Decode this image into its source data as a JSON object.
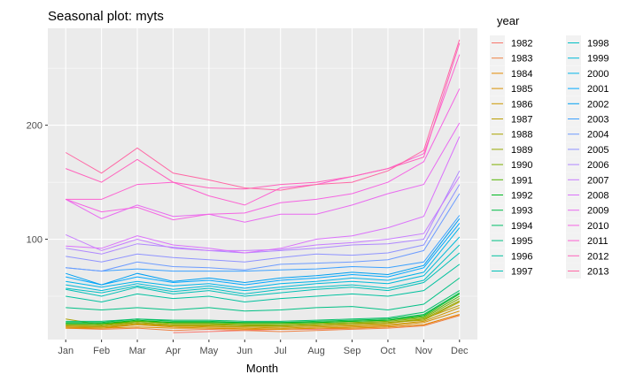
{
  "chart_data": {
    "type": "line",
    "title": "Seasonal plot: myts",
    "xlabel": "Month",
    "ylabel": "",
    "legend_title": "year",
    "legend_position": "right",
    "grid": true,
    "ylim": [
      12,
      285
    ],
    "y_ticks": [
      100,
      200
    ],
    "categories": [
      "Jan",
      "Feb",
      "Mar",
      "Apr",
      "May",
      "Jun",
      "Jul",
      "Aug",
      "Sep",
      "Oct",
      "Nov",
      "Dec"
    ],
    "series": [
      {
        "name": "1982",
        "color": "#F8766D",
        "values": [
          null,
          null,
          null,
          18,
          19,
          20,
          21,
          21,
          22,
          23,
          25,
          34
        ]
      },
      {
        "name": "1983",
        "color": "#EE8044",
        "values": [
          22,
          21,
          22,
          20,
          21,
          20,
          19,
          20,
          21,
          22,
          24,
          33
        ]
      },
      {
        "name": "1984",
        "color": "#E38900",
        "values": [
          22,
          22,
          23,
          22,
          22,
          21,
          21,
          22,
          22,
          23,
          25,
          34
        ]
      },
      {
        "name": "1985",
        "color": "#D89000",
        "values": [
          23,
          22,
          25,
          23,
          22,
          22,
          21,
          22,
          23,
          24,
          27,
          37
        ]
      },
      {
        "name": "1986",
        "color": "#CB9700",
        "values": [
          23,
          23,
          25,
          24,
          23,
          23,
          22,
          23,
          24,
          25,
          28,
          40
        ]
      },
      {
        "name": "1987",
        "color": "#BB9D00",
        "values": [
          24,
          23,
          26,
          24,
          24,
          23,
          23,
          24,
          25,
          26,
          30,
          42
        ]
      },
      {
        "name": "1988",
        "color": "#AAA300",
        "values": [
          30,
          25,
          27,
          25,
          25,
          25,
          24,
          25,
          26,
          27,
          29,
          45
        ]
      },
      {
        "name": "1989",
        "color": "#96A800",
        "values": [
          25,
          24,
          27,
          25,
          25,
          24,
          24,
          25,
          26,
          27,
          30,
          46
        ]
      },
      {
        "name": "1990",
        "color": "#7CAE00",
        "values": [
          25,
          25,
          28,
          26,
          26,
          25,
          25,
          26,
          27,
          28,
          31,
          48
        ]
      },
      {
        "name": "1991",
        "color": "#53B400",
        "values": [
          26,
          26,
          28,
          27,
          27,
          26,
          26,
          27,
          28,
          29,
          32,
          50
        ]
      },
      {
        "name": "1992",
        "color": "#00B81F",
        "values": [
          26,
          26,
          29,
          27,
          27,
          27,
          27,
          27,
          28,
          29,
          33,
          52
        ]
      },
      {
        "name": "1993",
        "color": "#00BB44",
        "values": [
          27,
          27,
          30,
          28,
          28,
          27,
          27,
          28,
          29,
          30,
          34,
          53
        ]
      },
      {
        "name": "1994",
        "color": "#00BE67",
        "values": [
          28,
          28,
          30,
          29,
          29,
          28,
          28,
          29,
          30,
          31,
          36,
          55
        ]
      },
      {
        "name": "1995",
        "color": "#00C085",
        "values": [
          40,
          38,
          40,
          38,
          40,
          37,
          38,
          40,
          41,
          38,
          43,
          66
        ]
      },
      {
        "name": "1996",
        "color": "#00C19F",
        "values": [
          50,
          45,
          52,
          48,
          50,
          45,
          48,
          50,
          52,
          50,
          55,
          78
        ]
      },
      {
        "name": "1997",
        "color": "#00C0B7",
        "values": [
          56,
          50,
          58,
          52,
          55,
          50,
          53,
          56,
          58,
          55,
          62,
          88
        ]
      },
      {
        "name": "1998",
        "color": "#00BFC4",
        "values": [
          57,
          53,
          59,
          54,
          57,
          52,
          56,
          58,
          60,
          57,
          64,
          95
        ]
      },
      {
        "name": "1999",
        "color": "#00BAD9",
        "values": [
          60,
          55,
          61,
          56,
          59,
          55,
          58,
          61,
          63,
          61,
          68,
          102
        ]
      },
      {
        "name": "2000",
        "color": "#00B4E9",
        "values": [
          63,
          58,
          63,
          59,
          61,
          57,
          61,
          63,
          66,
          64,
          71,
          110
        ]
      },
      {
        "name": "2001",
        "color": "#00A9FF",
        "values": [
          67,
          60,
          67,
          62,
          64,
          60,
          64,
          66,
          69,
          67,
          75,
          114
        ]
      },
      {
        "name": "2002",
        "color": "#00A0F2",
        "values": [
          70,
          60,
          70,
          63,
          66,
          62,
          66,
          68,
          71,
          69,
          77,
          118
        ]
      },
      {
        "name": "2003",
        "color": "#3BA1FF",
        "values": [
          75,
          72,
          74,
          72,
          72,
          72,
          73,
          74,
          76,
          75,
          80,
          121
        ]
      },
      {
        "name": "2004",
        "color": "#6D9CFF",
        "values": [
          75,
          72,
          80,
          76,
          75,
          73,
          78,
          79,
          80,
          82,
          90,
          140
        ]
      },
      {
        "name": "2005",
        "color": "#8F93FF",
        "values": [
          85,
          80,
          87,
          84,
          82,
          80,
          84,
          87,
          86,
          88,
          95,
          148
        ]
      },
      {
        "name": "2006",
        "color": "#AF87FF",
        "values": [
          92,
          87,
          96,
          93,
          90,
          88,
          90,
          92,
          95,
          96,
          100,
          160
        ]
      },
      {
        "name": "2007",
        "color": "#C77CFF",
        "values": [
          104,
          90,
          100,
          92,
          90,
          90,
          91,
          95,
          97,
          100,
          105,
          155
        ]
      },
      {
        "name": "2008",
        "color": "#DB72FB",
        "values": [
          94,
          92,
          103,
          95,
          92,
          88,
          92,
          100,
          103,
          110,
          120,
          190
        ]
      },
      {
        "name": "2009",
        "color": "#E96AF0",
        "values": [
          135,
          118,
          130,
          120,
          122,
          115,
          122,
          122,
          130,
          140,
          148,
          202
        ]
      },
      {
        "name": "2010",
        "color": "#F564E3",
        "values": [
          135,
          124,
          128,
          117,
          122,
          123,
          132,
          135,
          140,
          150,
          168,
          232
        ]
      },
      {
        "name": "2011",
        "color": "#FD61D1",
        "values": [
          135,
          135,
          148,
          150,
          138,
          130,
          145,
          148,
          155,
          162,
          175,
          262
        ]
      },
      {
        "name": "2012",
        "color": "#FF62BC",
        "values": [
          162,
          150,
          170,
          150,
          145,
          144,
          148,
          150,
          155,
          162,
          172,
          272
        ]
      },
      {
        "name": "2013",
        "color": "#FF67A4",
        "values": [
          176,
          158,
          180,
          158,
          152,
          145,
          143,
          148,
          150,
          160,
          178,
          275
        ]
      }
    ]
  }
}
